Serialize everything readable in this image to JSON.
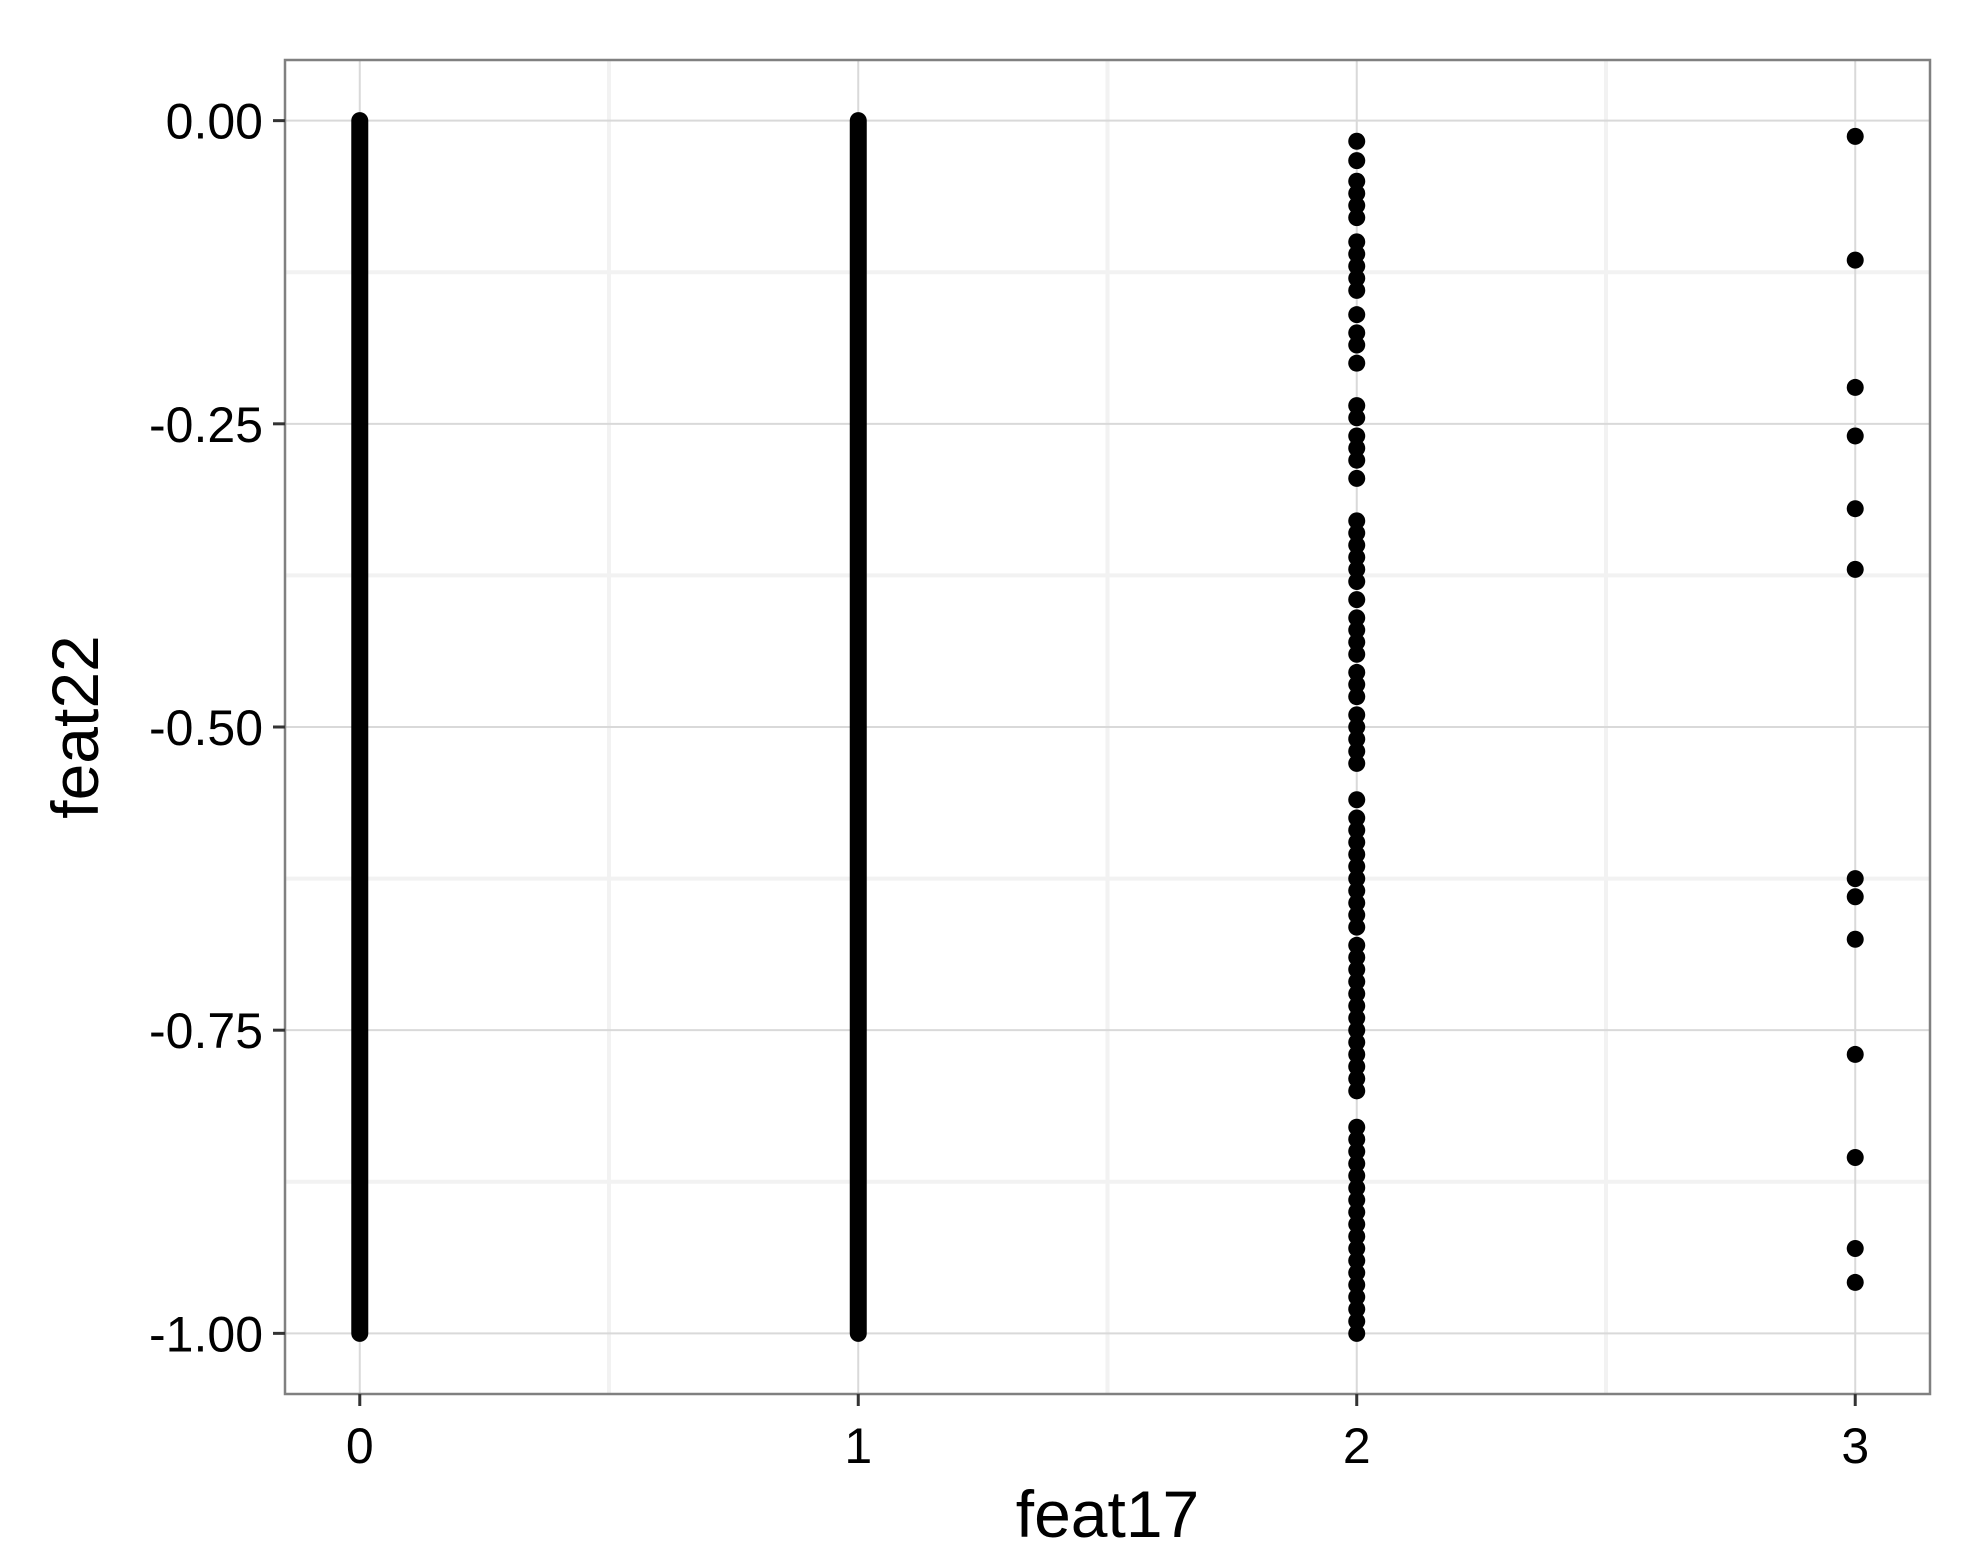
{
  "chart_data": {
    "type": "scatter",
    "title": "",
    "xlabel": "feat17",
    "ylabel": "feat22",
    "xlim": [
      -0.15,
      3.15
    ],
    "ylim": [
      -1.05,
      0.05
    ],
    "x_ticks": [
      0,
      1,
      2,
      3
    ],
    "x_tick_labels": [
      "0",
      "1",
      "2",
      "3"
    ],
    "y_ticks": [
      0.0,
      -0.25,
      -0.5,
      -0.75,
      -1.0
    ],
    "y_tick_labels": [
      "0.00",
      "-0.25",
      "-0.50",
      "-0.75",
      "-1.00"
    ],
    "grid": true,
    "legend": "none",
    "colors": {
      "points": "#000000",
      "panel_background": "#ffffff",
      "grid_major": "#d9d9d9",
      "grid_minor": "#f2f2f2",
      "panel_border": "#808080",
      "tick_mark": "#333333"
    },
    "series": [
      {
        "x_value": 0,
        "coverage": "dense",
        "y_range": [
          -1.0,
          0.0
        ]
      },
      {
        "x_value": 1,
        "coverage": "dense",
        "y_range": [
          -1.0,
          0.0
        ]
      },
      {
        "x_value": 2,
        "coverage": "sparse",
        "y": [
          -0.017,
          -0.033,
          -0.05,
          -0.06,
          -0.07,
          -0.08,
          -0.1,
          -0.11,
          -0.12,
          -0.13,
          -0.14,
          -0.16,
          -0.175,
          -0.185,
          -0.2,
          -0.235,
          -0.245,
          -0.26,
          -0.27,
          -0.28,
          -0.295,
          -0.33,
          -0.34,
          -0.35,
          -0.36,
          -0.37,
          -0.38,
          -0.395,
          -0.41,
          -0.42,
          -0.43,
          -0.44,
          -0.455,
          -0.465,
          -0.475,
          -0.49,
          -0.5,
          -0.51,
          -0.52,
          -0.53,
          -0.56,
          -0.575,
          -0.585,
          -0.595,
          -0.605,
          -0.615,
          -0.625,
          -0.635,
          -0.645,
          -0.655,
          -0.665,
          -0.68,
          -0.69,
          -0.7,
          -0.71,
          -0.72,
          -0.73,
          -0.74,
          -0.75,
          -0.76,
          -0.77,
          -0.78,
          -0.79,
          -0.8,
          -0.83,
          -0.84,
          -0.85,
          -0.86,
          -0.87,
          -0.88,
          -0.89,
          -0.9,
          -0.91,
          -0.92,
          -0.93,
          -0.94,
          -0.95,
          -0.96,
          -0.97,
          -0.98,
          -0.99,
          -1.0
        ]
      },
      {
        "x_value": 3,
        "coverage": "sparse",
        "y": [
          -0.013,
          -0.115,
          -0.22,
          -0.26,
          -0.32,
          -0.37,
          -0.625,
          -0.64,
          -0.675,
          -0.77,
          -0.855,
          -0.93,
          -0.958
        ]
      }
    ]
  }
}
